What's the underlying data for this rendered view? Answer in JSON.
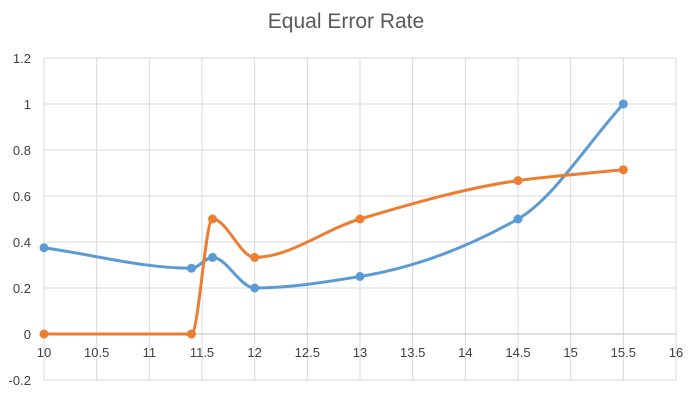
{
  "chart_data": {
    "type": "line",
    "title": "Equal Error Rate",
    "xlabel": "",
    "ylabel": "",
    "xlim": [
      10,
      16
    ],
    "ylim": [
      -0.2,
      1.2
    ],
    "x_ticks": [
      "10",
      "10.5",
      "11",
      "11.5",
      "12",
      "12.5",
      "13",
      "13.5",
      "14",
      "14.5",
      "15",
      "15.5",
      "16"
    ],
    "y_ticks": [
      "1.2",
      "1",
      "0.8",
      "0.6",
      "0.4",
      "0.2",
      "0",
      "-0.2"
    ],
    "grid": true,
    "legend": "none",
    "series": [
      {
        "color": "#5b9bd5",
        "points": [
          {
            "x": 10,
            "y": 0.375
          },
          {
            "x": 11.4,
            "y": 0.286
          },
          {
            "x": 11.6,
            "y": 0.333
          },
          {
            "x": 12,
            "y": 0.2
          },
          {
            "x": 13,
            "y": 0.25
          },
          {
            "x": 14.5,
            "y": 0.5
          },
          {
            "x": 15.5,
            "y": 1.0
          }
        ]
      },
      {
        "color": "#ed7d31",
        "points": [
          {
            "x": 10,
            "y": 0.0
          },
          {
            "x": 11.4,
            "y": 0.0
          },
          {
            "x": 11.6,
            "y": 0.5
          },
          {
            "x": 12,
            "y": 0.333
          },
          {
            "x": 13,
            "y": 0.5
          },
          {
            "x": 14.5,
            "y": 0.667
          },
          {
            "x": 15.5,
            "y": 0.714
          }
        ]
      }
    ]
  }
}
